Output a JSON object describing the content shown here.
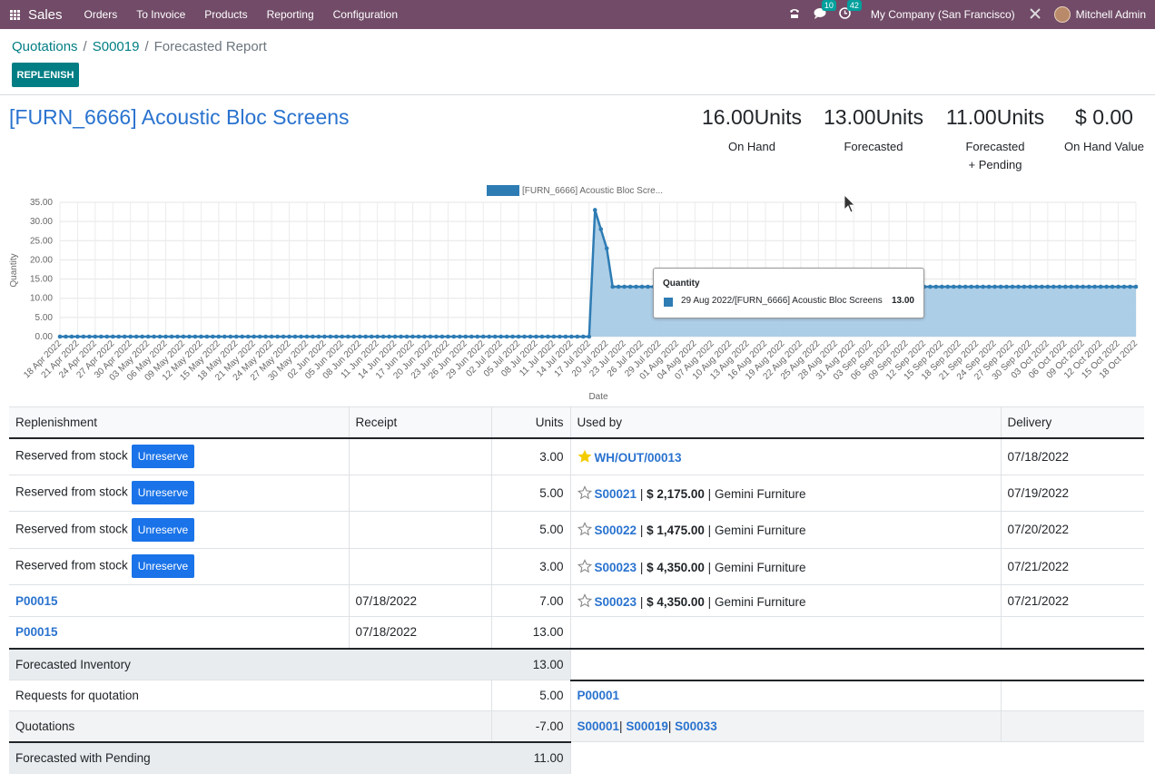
{
  "navbar": {
    "app_name": "Sales",
    "menu": [
      "Orders",
      "To Invoice",
      "Products",
      "Reporting",
      "Configuration"
    ],
    "messages_count": "10",
    "activities_count": "42",
    "company": "My Company (San Francisco)",
    "user": "Mitchell Admin"
  },
  "breadcrumb": {
    "items": [
      "Quotations",
      "S00019"
    ],
    "current": "Forecasted Report",
    "separator": "/"
  },
  "buttons": {
    "replenish": "REPLENISH",
    "unreserve": "Unreserve"
  },
  "product": {
    "title": "[FURN_6666] Acoustic Bloc Screens"
  },
  "kpis": [
    {
      "value": "16.00Units",
      "label": "On Hand"
    },
    {
      "value": "13.00Units",
      "label": "Forecasted"
    },
    {
      "value": "11.00Units",
      "label_line1": "Forecasted",
      "label_line2": "+ Pending"
    },
    {
      "value": "$ 0.00",
      "label": "On Hand Value"
    }
  ],
  "chart_data": {
    "type": "area",
    "legend": "[FURN_6666] Acoustic Bloc Scre...",
    "legend_position": "top-center",
    "xlabel": "Date",
    "ylabel": "Quantity",
    "ylim": [
      0,
      35
    ],
    "yticks": [
      "0.00",
      "5.00",
      "10.00",
      "15.00",
      "20.00",
      "25.00",
      "30.00",
      "35.00"
    ],
    "grid": true,
    "color": "#2e7cb4",
    "fill_color": "#a9cbe6",
    "x_start": "2022-04-18",
    "x_end": "2022-10-18",
    "x_labels": [
      "18 Apr 2022",
      "21 Apr 2022",
      "24 Apr 2022",
      "27 Apr 2022",
      "30 Apr 2022",
      "03 May 2022",
      "06 May 2022",
      "09 May 2022",
      "12 May 2022",
      "15 May 2022",
      "18 May 2022",
      "21 May 2022",
      "24 May 2022",
      "27 May 2022",
      "30 May 2022",
      "02 Jun 2022",
      "05 Jun 2022",
      "08 Jun 2022",
      "11 Jun 2022",
      "14 Jun 2022",
      "17 Jun 2022",
      "20 Jun 2022",
      "23 Jun 2022",
      "26 Jun 2022",
      "29 Jun 2022",
      "02 Jul 2022",
      "05 Jul 2022",
      "08 Jul 2022",
      "11 Jul 2022",
      "14 Jul 2022",
      "17 Jul 2022",
      "20 Jul 2022",
      "23 Jul 2022",
      "26 Jul 2022",
      "29 Jul 2022",
      "01 Aug 2022",
      "04 Aug 2022",
      "07 Aug 2022",
      "10 Aug 2022",
      "13 Aug 2022",
      "16 Aug 2022",
      "19 Aug 2022",
      "22 Aug 2022",
      "25 Aug 2022",
      "28 Aug 2022",
      "31 Aug 2022",
      "03 Sep 2022",
      "06 Sep 2022",
      "09 Sep 2022",
      "12 Sep 2022",
      "15 Sep 2022",
      "18 Sep 2022",
      "21 Sep 2022",
      "24 Sep 2022",
      "27 Sep 2022",
      "30 Sep 2022",
      "03 Oct 2022",
      "06 Oct 2022",
      "09 Oct 2022",
      "12 Oct 2022",
      "15 Oct 2022",
      "18 Oct 2022"
    ],
    "segments": [
      {
        "from": "2022-04-18",
        "to": "2022-07-17",
        "value": 0
      },
      {
        "from": "2022-07-22",
        "to": "2022-10-18",
        "value": 13
      }
    ],
    "points": [
      {
        "x": "2022-07-18",
        "y": 33
      },
      {
        "x": "2022-07-19",
        "y": 28
      },
      {
        "x": "2022-07-20",
        "y": 23
      },
      {
        "x": "2022-07-21",
        "y": 13
      }
    ],
    "tooltip": {
      "title": "Quantity",
      "label": "29 Aug 2022/[FURN_6666] Acoustic Bloc Screens",
      "value": "13.00"
    }
  },
  "table": {
    "headers": [
      "Replenishment",
      "Receipt",
      "Units",
      "Used by",
      "Delivery"
    ],
    "reserved_label": "Reserved from stock",
    "rows": [
      {
        "units": "3.00",
        "used_by": "WH/OUT/00013",
        "delivery": "07/18/2022"
      },
      {
        "units": "5.00",
        "order": "S00021",
        "amount": "$ 2,175.00",
        "partner": "Gemini Furniture",
        "delivery": "07/19/2022"
      },
      {
        "units": "5.00",
        "order": "S00022",
        "amount": "$ 1,475.00",
        "partner": "Gemini Furniture",
        "delivery": "07/20/2022"
      },
      {
        "units": "3.00",
        "order": "S00023",
        "amount": "$ 4,350.00",
        "partner": "Gemini Furniture",
        "delivery": "07/21/2022"
      },
      {
        "replenishment": "P00015",
        "receipt": "07/18/2022",
        "units": "7.00",
        "order": "S00023",
        "amount": "$ 4,350.00",
        "partner": "Gemini Furniture",
        "delivery": "07/21/2022"
      },
      {
        "replenishment": "P00015",
        "receipt": "07/18/2022",
        "units": "13.00"
      }
    ],
    "forecasted_inventory": {
      "label": "Forecasted Inventory",
      "units": "13.00"
    },
    "requests_for_quotation": {
      "label": "Requests for quotation",
      "units": "5.00",
      "used_by": "P00001"
    },
    "quotations": {
      "label": "Quotations",
      "units": "-7.00",
      "used_by": [
        "S00001",
        "S00019",
        "S00033"
      ],
      "separator": "|"
    },
    "forecasted_with_pending": {
      "label": "Forecasted with Pending",
      "units": "11.00"
    },
    "pipe": "|"
  }
}
